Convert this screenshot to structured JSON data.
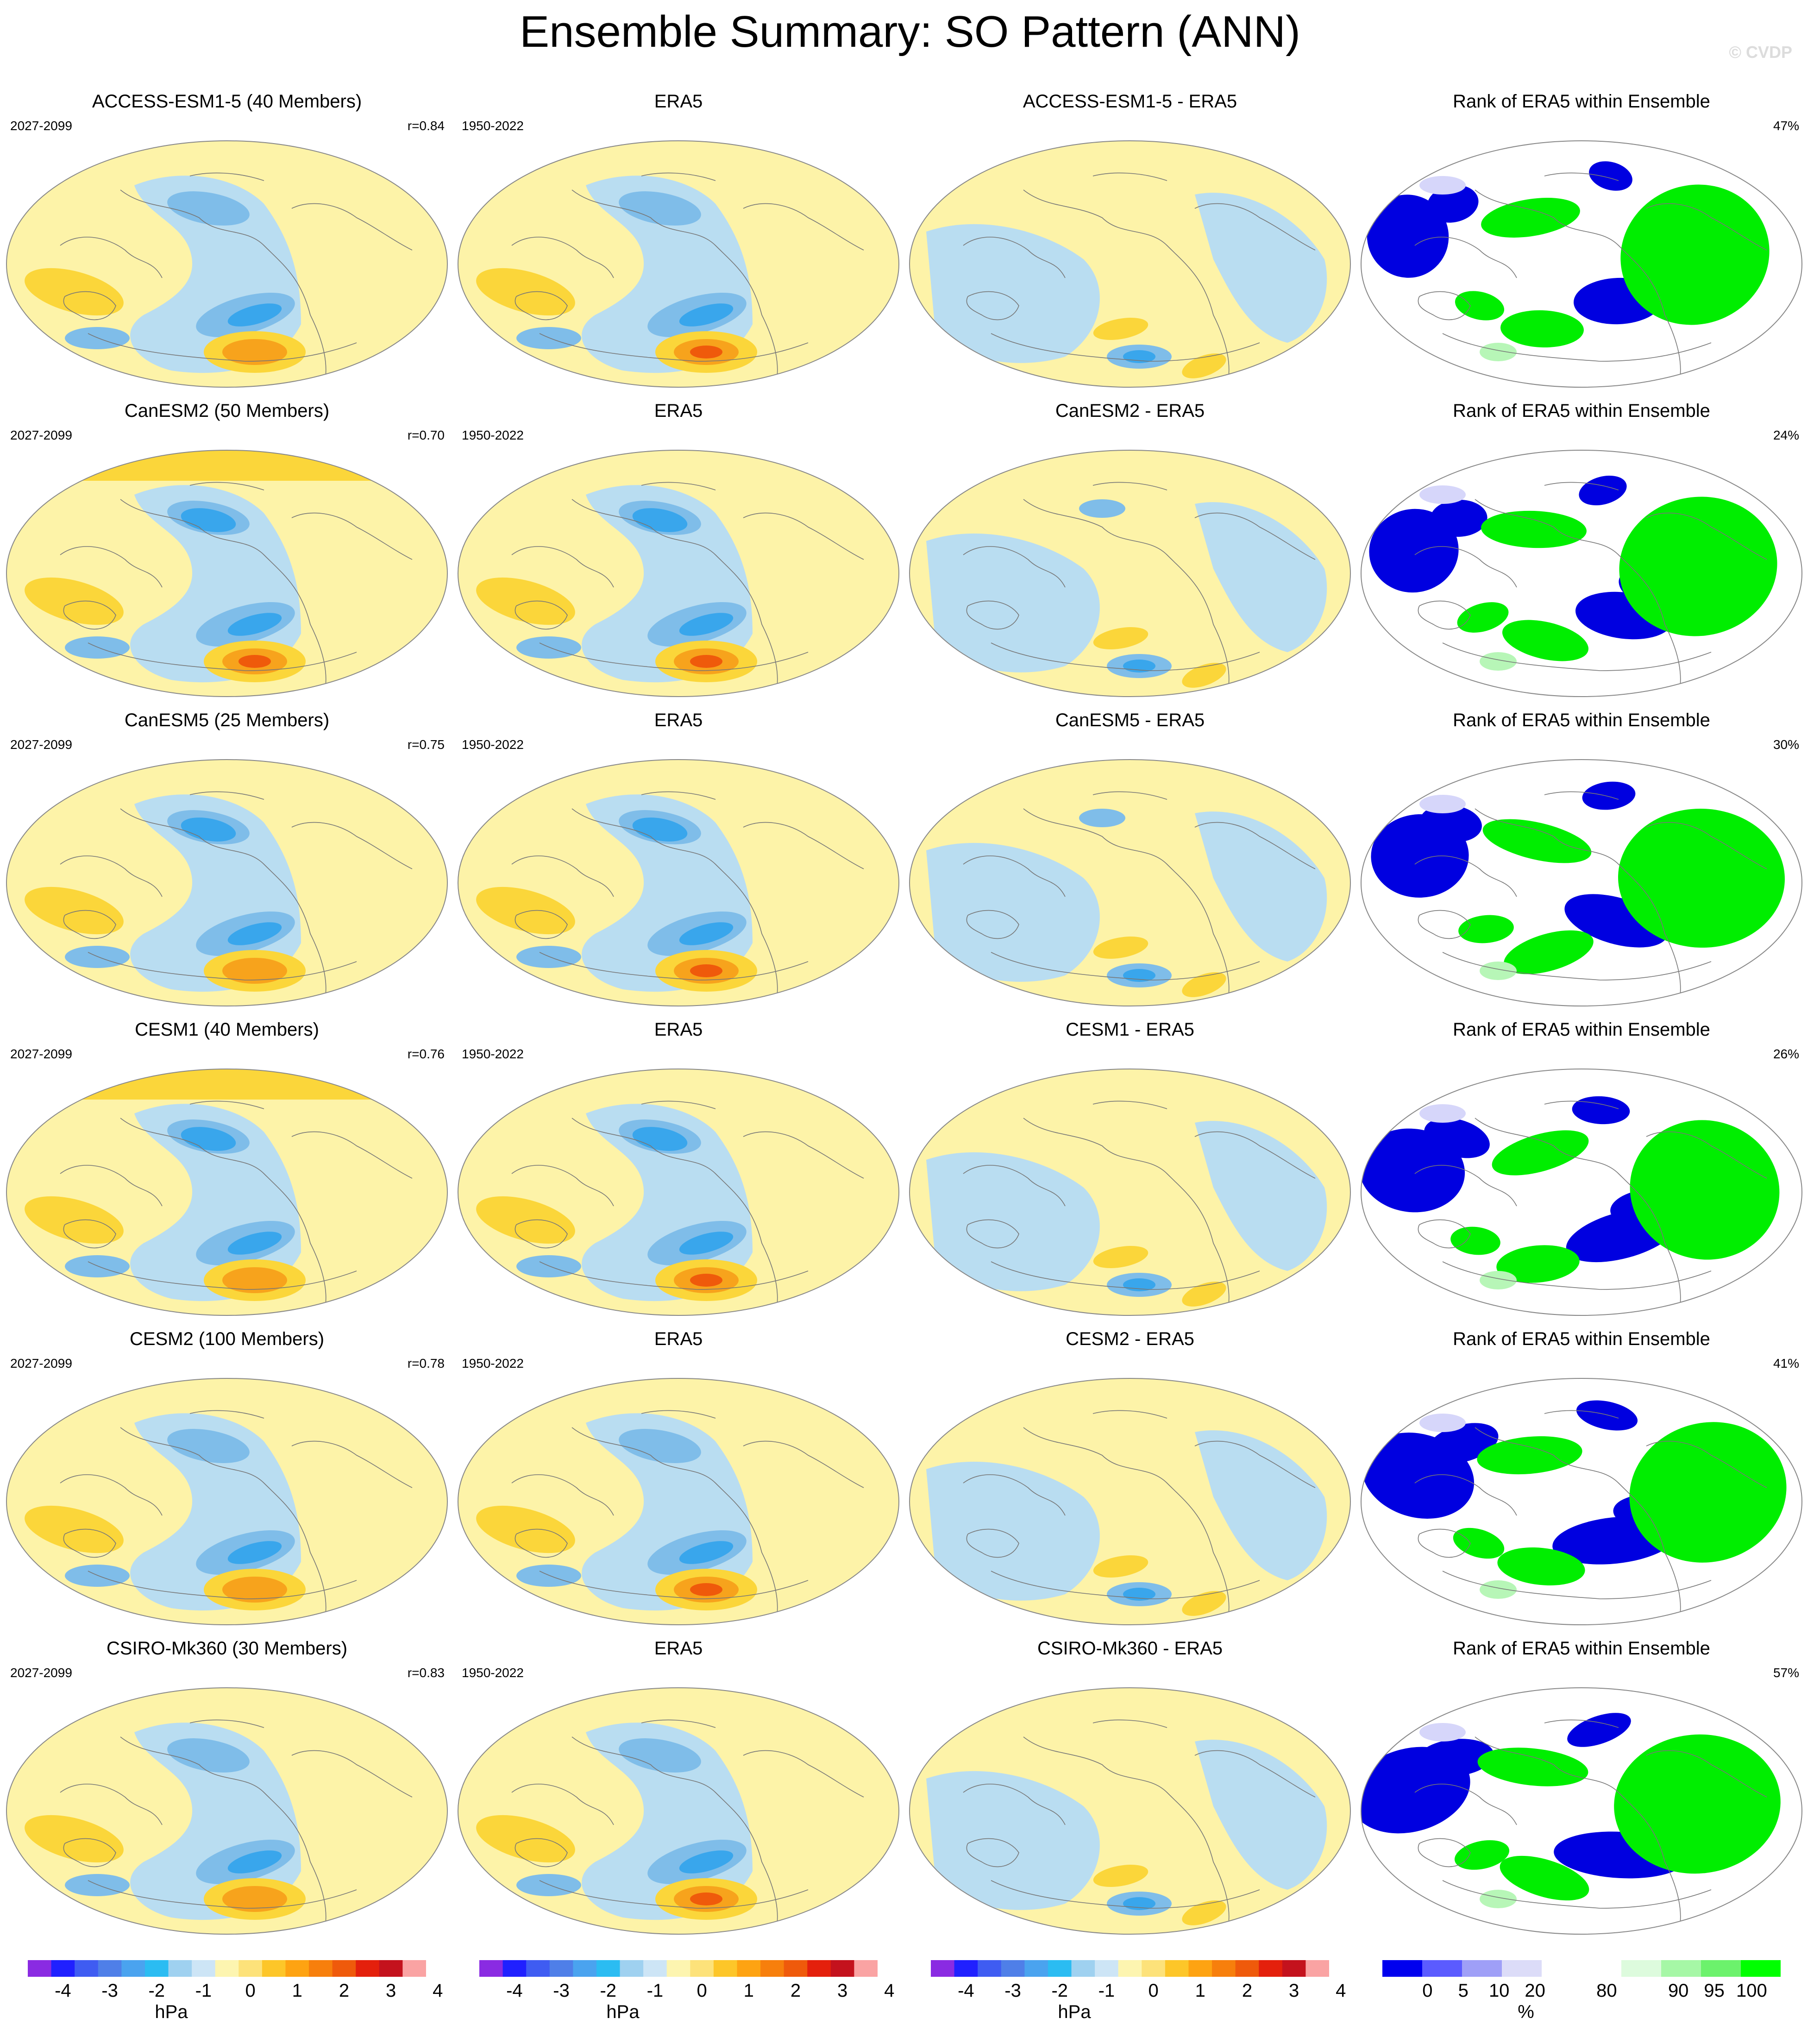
{
  "title": "Ensemble Summary: SO Pattern (ANN)",
  "watermark": "© CVDP",
  "colors": {
    "diverging": [
      "#8a2be2",
      "#2020ff",
      "#3f5cf2",
      "#4f7fe8",
      "#4aa3ef",
      "#2bbcf2",
      "#9fd1f0",
      "#cde5f6",
      "#fdf5b0",
      "#fde27a",
      "#fdc629",
      "#fea312",
      "#f77f0c",
      "#ef5a0b",
      "#e4200c",
      "#c4121d",
      "#faa3a3"
    ],
    "rank": [
      "#0000ee",
      "#5b5bff",
      "#9f9ff7",
      "#dcdcf8",
      "#ffffff",
      "#ffffff",
      "#ddfbdd",
      "#a6f7a6",
      "#6cf26c",
      "#00ff00"
    ],
    "neg_light": "#b9ddf1",
    "neg_mid": "#7fbde9",
    "neg_strong": "#39a6ec",
    "pos_light": "#fdf3a8",
    "pos_mid": "#fbd63a",
    "pos_strong": "#f7a31c",
    "pos_core": "#ef5a0b",
    "rank_low": "#0000e0",
    "rank_high": "#00ee00",
    "coast": "#777777"
  },
  "rows": [
    {
      "model": "ACCESS-ESM1-5 (40 Members)",
      "period": "2027-2099",
      "r": "r=0.84",
      "diff": "ACCESS-ESM1-5 - ERA5",
      "pct": "47%"
    },
    {
      "model": "CanESM2 (50 Members)",
      "period": "2027-2099",
      "r": "r=0.70",
      "diff": "CanESM2 - ERA5",
      "pct": "24%"
    },
    {
      "model": "CanESM5 (25 Members)",
      "period": "2027-2099",
      "r": "r=0.75",
      "diff": "CanESM5 - ERA5",
      "pct": "30%"
    },
    {
      "model": "CESM1 (40 Members)",
      "period": "2027-2099",
      "r": "r=0.76",
      "diff": "CESM1 - ERA5",
      "pct": "26%"
    },
    {
      "model": "CESM2 (100 Members)",
      "period": "2027-2099",
      "r": "r=0.78",
      "diff": "CESM2 - ERA5",
      "pct": "41%"
    },
    {
      "model": "CSIRO-Mk360 (30 Members)",
      "period": "2027-2099",
      "r": "r=0.83",
      "diff": "CSIRO-Mk360 - ERA5",
      "pct": "57%"
    }
  ],
  "obs": {
    "name": "ERA5",
    "period": "1950-2022"
  },
  "rank_title": "Rank of ERA5 within Ensemble",
  "colorbar_hpa": {
    "ticks": [
      "-4",
      "-3",
      "-2",
      "-1",
      "0",
      "1",
      "2",
      "3",
      "4"
    ],
    "unit": "hPa"
  },
  "colorbar_rank": {
    "ticks": [
      "0",
      "5",
      "10",
      "20",
      "80",
      "90",
      "95",
      "100"
    ],
    "unit": "%"
  }
}
